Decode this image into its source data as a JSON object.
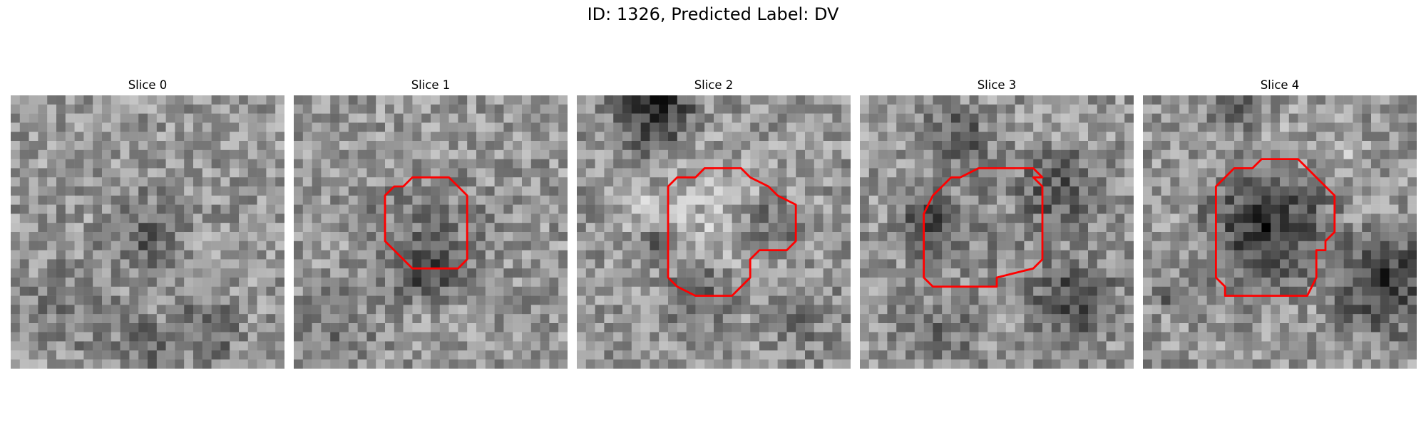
{
  "figure": {
    "title": "ID: 1326, Predicted Label: DV"
  },
  "style": {
    "contour_color": "#ff0000"
  },
  "slices": [
    {
      "title": "Slice 0",
      "has_contour": false
    },
    {
      "title": "Slice 1",
      "has_contour": true
    },
    {
      "title": "Slice 2",
      "has_contour": true
    },
    {
      "title": "Slice 3",
      "has_contour": true
    },
    {
      "title": "Slice 4",
      "has_contour": true
    }
  ]
}
